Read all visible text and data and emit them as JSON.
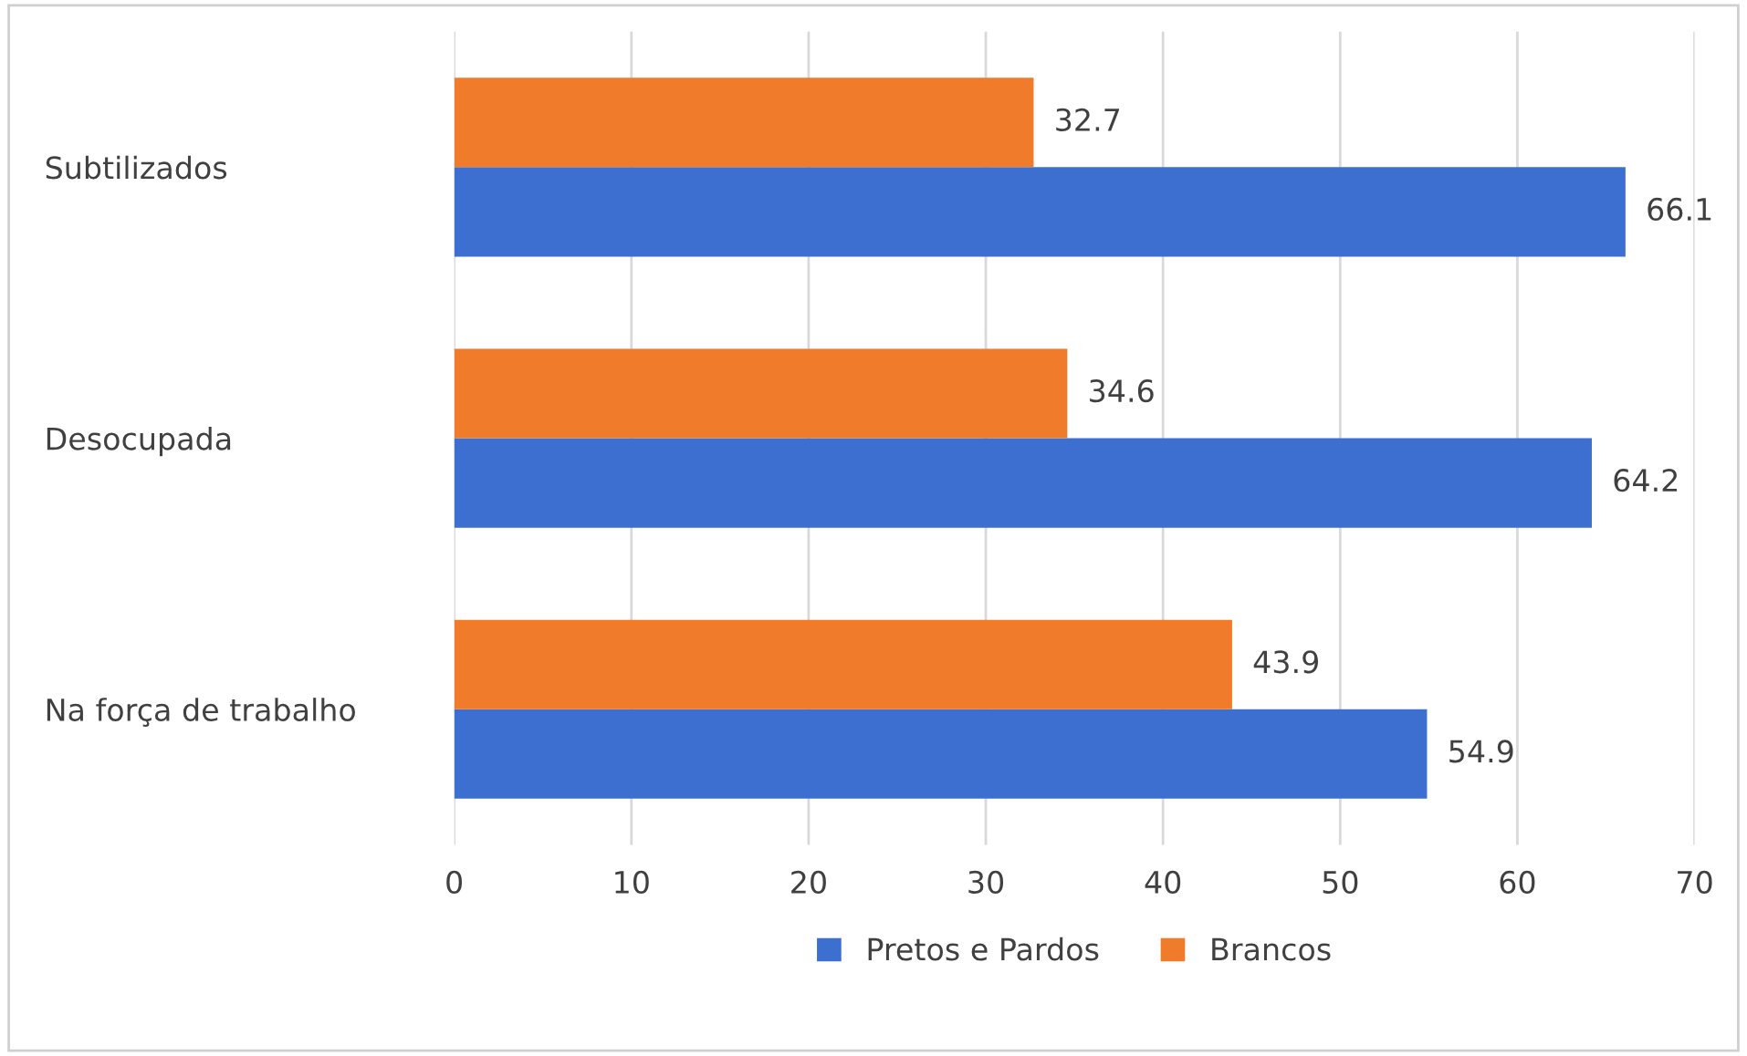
{
  "chart_data": {
    "type": "bar",
    "orientation": "horizontal",
    "categories": [
      "Subtilizados",
      "Desocupada",
      "Na força de trabalho"
    ],
    "series": [
      {
        "name": "Pretos e Pardos",
        "color": "#3c6fcf",
        "values": [
          66.1,
          64.2,
          54.9
        ]
      },
      {
        "name": "Brancos",
        "color": "#ef7b2b",
        "values": [
          32.7,
          34.6,
          43.9
        ]
      }
    ],
    "xlim": [
      0,
      70
    ],
    "xticks": [
      0,
      10,
      20,
      30,
      40,
      50,
      60,
      70
    ],
    "grid": "x",
    "legend": "bottom",
    "data_labels": true
  }
}
